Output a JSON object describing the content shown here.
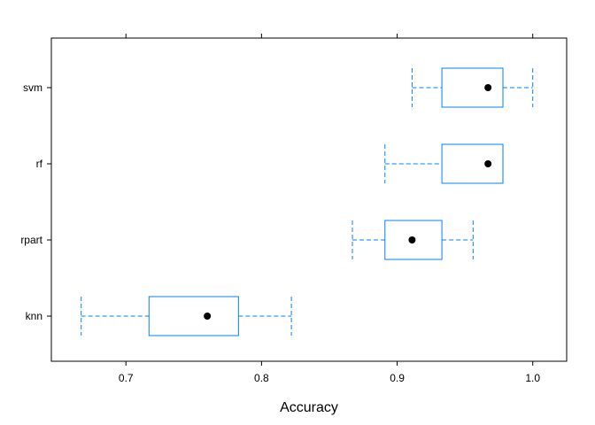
{
  "chart_data": {
    "type": "boxplot",
    "orientation": "horizontal",
    "title": "",
    "xlabel": "Accuracy",
    "ylabel": "",
    "xlim": [
      0.645,
      1.025
    ],
    "xticks": [
      0.7,
      0.8,
      0.9,
      1.0
    ],
    "xtick_labels": [
      "0.7",
      "0.8",
      "0.9",
      "1.0"
    ],
    "categories": [
      "svm",
      "rf",
      "rpart",
      "knn"
    ],
    "boxes": [
      {
        "name": "svm",
        "min": 0.911,
        "q1": 0.933,
        "median": 0.967,
        "q3": 0.978,
        "max": 1.0
      },
      {
        "name": "rf",
        "min": 0.891,
        "q1": 0.933,
        "median": 0.967,
        "q3": 0.978,
        "max": 0.978
      },
      {
        "name": "rpart",
        "min": 0.867,
        "q1": 0.891,
        "median": 0.911,
        "q3": 0.933,
        "max": 0.956
      },
      {
        "name": "knn",
        "min": 0.667,
        "q1": 0.717,
        "median": 0.76,
        "q3": 0.783,
        "max": 0.822
      }
    ],
    "grid": false,
    "colors": {
      "box": "#0080ff",
      "median_dot": "#000000",
      "frame": "#000000"
    }
  }
}
